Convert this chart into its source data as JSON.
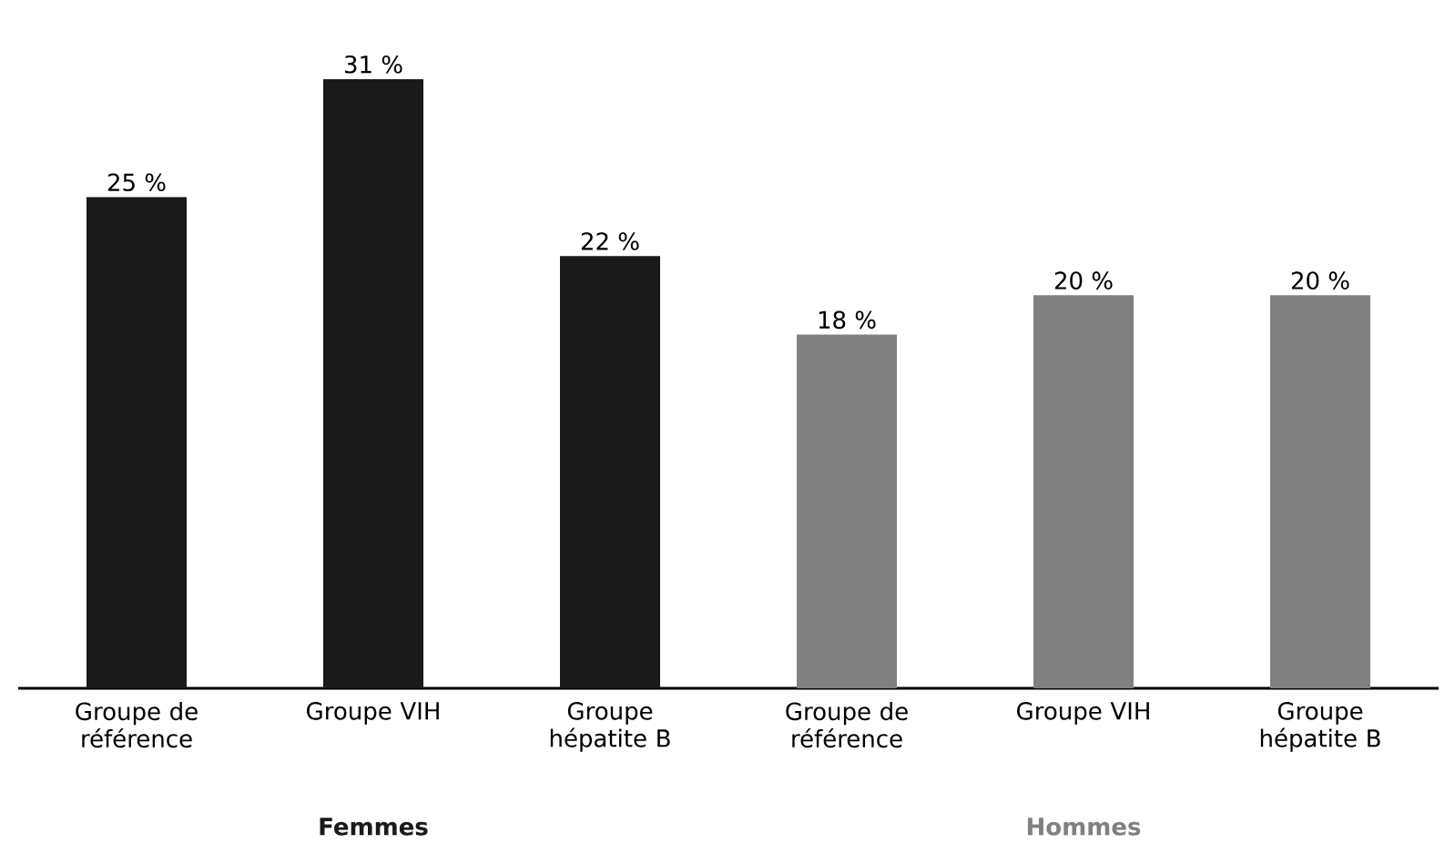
{
  "chart_data": {
    "type": "bar",
    "categories": [
      "Groupe de référence",
      "Groupe VIH",
      "Groupe hépatite B",
      "Groupe de référence",
      "Groupe VIH",
      "Groupe hépatite B"
    ],
    "series": [
      {
        "name": "Femmes",
        "color": "#1a1a1a",
        "values": [
          25,
          31,
          22,
          null,
          null,
          null
        ],
        "value_labels": [
          "25 %",
          "31 %",
          "22 %",
          null,
          null,
          null
        ]
      },
      {
        "name": "Hommes",
        "color": "#808080",
        "values": [
          null,
          null,
          null,
          18,
          20,
          20
        ],
        "value_labels": [
          null,
          null,
          null,
          "18 %",
          "20 %",
          "20 %"
        ]
      }
    ],
    "legend": false,
    "grid": false
  }
}
